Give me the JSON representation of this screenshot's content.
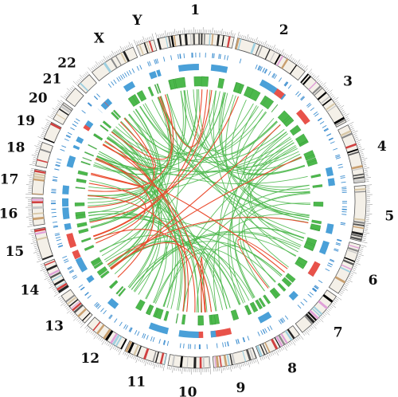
{
  "chromosomes": [
    {
      "name": "1",
      "label": "1",
      "size": 249
    },
    {
      "name": "2",
      "label": "2",
      "size": 243
    },
    {
      "name": "3",
      "label": "3",
      "size": 198
    },
    {
      "name": "4",
      "label": "4",
      "size": 191
    },
    {
      "name": "5",
      "label": "5",
      "size": 181
    },
    {
      "name": "6",
      "label": "6",
      "size": 171
    },
    {
      "name": "7",
      "label": "7",
      "size": 159
    },
    {
      "name": "8",
      "label": "8",
      "size": 146
    },
    {
      "name": "9",
      "label": "9",
      "size": 141
    },
    {
      "name": "10",
      "label": "10",
      "size": 136
    },
    {
      "name": "11",
      "label": "11",
      "size": 135
    },
    {
      "name": "12",
      "label": "12",
      "size": 134
    },
    {
      "name": "13",
      "label": "13",
      "size": 115
    },
    {
      "name": "14",
      "label": "14",
      "size": 107
    },
    {
      "name": "15",
      "label": "15",
      "size": 102
    },
    {
      "name": "16",
      "label": "16",
      "size": 90
    },
    {
      "name": "17",
      "label": "17",
      "size": 81
    },
    {
      "name": "18",
      "label": "18",
      "size": 78
    },
    {
      "name": "19",
      "label": "19",
      "size": 59
    },
    {
      "name": "20",
      "label": "20",
      "size": 63
    },
    {
      "name": "21",
      "label": "21",
      "size": 48
    },
    {
      "name": "22",
      "label": "22",
      "size": 51
    },
    {
      "name": "X",
      "label": "X",
      "size": 155
    },
    {
      "name": "Y",
      "label": "Y",
      "size": 59
    }
  ],
  "colors": {
    "background": "#ffffff",
    "ideogram_outline": "#555555",
    "cnv_gain": "#4aa0d8",
    "cnv_loss": "#e8524a",
    "snv_tick": "#3f8fd0",
    "sv_green": "#4cb84c",
    "intra_link": "#4cb84c",
    "inter_link": "#ea4b2e",
    "band_palette": [
      "#000000",
      "#222222",
      "#555555",
      "#8a8a8a",
      "#c8c8c8",
      "#d8c8a8",
      "#c9a070",
      "#e0a0d8",
      "#a0d0e0",
      "#d04040"
    ]
  }
}
